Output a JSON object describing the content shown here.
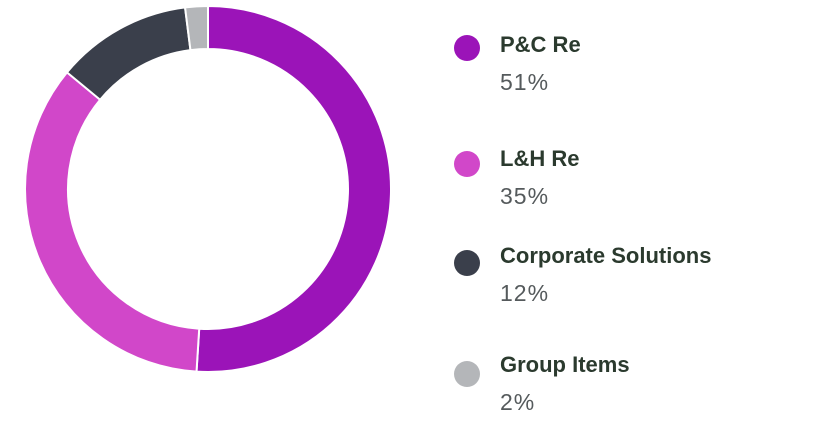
{
  "chart_data": {
    "type": "pie",
    "donut": true,
    "categories": [
      "P&C Re",
      "L&H Re",
      "Corporate Solutions",
      "Group Items"
    ],
    "values": [
      51,
      35,
      12,
      2
    ],
    "value_labels": [
      "51%",
      "35%",
      "12%",
      "2%"
    ],
    "colors": [
      "#9b14b8",
      "#d147c9",
      "#3a3f4b",
      "#b4b6b9"
    ]
  }
}
